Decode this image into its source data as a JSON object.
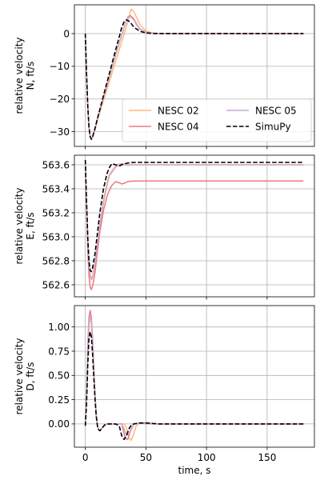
{
  "chart_data": [
    {
      "type": "line",
      "ylabel": [
        "relative velocity",
        "N, ft/s"
      ],
      "xlim": [
        -9,
        189
      ],
      "ylim": [
        -34.5,
        8.8
      ],
      "xticks": [
        0,
        50,
        100,
        150
      ],
      "yticks": [
        0,
        -10,
        -20,
        -30
      ],
      "ytick_labels": [
        "0",
        "−10",
        "−20",
        "−30"
      ],
      "grid": true,
      "legend": {
        "placement": "lower-right",
        "columns": 2,
        "entries": [
          "NESC 02",
          "NESC 04",
          "NESC 05",
          "SimuPy"
        ]
      },
      "series": [
        {
          "name": "NESC 02",
          "color": "#fdb97d",
          "style": "solid",
          "x": [
            0,
            1,
            2,
            3,
            4,
            5,
            6,
            8,
            10,
            15,
            20,
            25,
            30,
            33,
            35,
            37,
            38,
            40,
            42,
            45,
            50,
            55,
            60,
            80,
            100,
            140,
            180
          ],
          "y": [
            0,
            -12,
            -22,
            -28.5,
            -31.5,
            -32.5,
            -31.8,
            -29.5,
            -26.5,
            -20.5,
            -14.5,
            -8.5,
            -2.5,
            1,
            3.5,
            6.5,
            7.5,
            6.7,
            5.2,
            2.8,
            0.8,
            0.2,
            0.05,
            0,
            0,
            0,
            0
          ]
        },
        {
          "name": "NESC 04",
          "color": "#ec7a7f",
          "style": "solid",
          "x": [
            0,
            1,
            2,
            3,
            4,
            5,
            6,
            8,
            10,
            15,
            20,
            25,
            30,
            33,
            35,
            37,
            40,
            43,
            45,
            50,
            55,
            60,
            80,
            100,
            140,
            180
          ],
          "y": [
            0,
            -12,
            -22,
            -28.5,
            -31.5,
            -32.3,
            -31.5,
            -29,
            -26,
            -19.5,
            -13,
            -6.5,
            -0.5,
            3,
            5,
            5.5,
            4.5,
            2.5,
            1.5,
            0.4,
            0.1,
            0,
            0,
            0,
            0,
            0
          ]
        },
        {
          "name": "NESC 05",
          "color": "#c9a8cf",
          "style": "solid",
          "x": [
            0,
            1,
            2,
            3,
            4,
            5,
            6,
            8,
            10,
            15,
            20,
            25,
            30,
            33,
            35,
            37,
            40,
            43,
            45,
            50,
            55,
            60,
            80,
            100,
            140,
            180
          ],
          "y": [
            0,
            -12,
            -22,
            -28.5,
            -31.5,
            -32.3,
            -31.5,
            -29,
            -26,
            -19.5,
            -13,
            -6.5,
            -0.5,
            3,
            4.8,
            5.2,
            4.2,
            2.3,
            1.4,
            0.4,
            0.1,
            0,
            0,
            0,
            0,
            0
          ]
        },
        {
          "name": "SimuPy",
          "color": "#000000",
          "style": "dashed",
          "x": [
            0,
            1,
            2,
            3,
            4,
            5,
            6,
            8,
            10,
            15,
            20,
            25,
            28,
            30,
            32,
            34,
            36,
            38,
            40,
            45,
            50,
            55,
            60,
            80,
            100,
            140,
            180
          ],
          "y": [
            0,
            -12,
            -22,
            -28.5,
            -31.5,
            -32.3,
            -31.5,
            -29,
            -26,
            -19,
            -12,
            -5,
            -1,
            1.8,
            3.6,
            4.2,
            3.8,
            3,
            2,
            0.7,
            0.2,
            0.05,
            0,
            0,
            0,
            0,
            0
          ]
        }
      ]
    },
    {
      "type": "line",
      "ylabel": [
        "relative velocity",
        "E, ft/s"
      ],
      "xlim": [
        -9,
        189
      ],
      "ylim": [
        562.5,
        563.68
      ],
      "xticks": [
        0,
        50,
        100,
        150
      ],
      "yticks": [
        563.6,
        563.4,
        563.2,
        563.0,
        562.8,
        562.6
      ],
      "ytick_labels": [
        "563.6",
        "563.4",
        "563.2",
        "563.0",
        "562.8",
        "562.6"
      ],
      "grid": true,
      "series": [
        {
          "name": "NESC 02",
          "color": "#fdb97d",
          "style": "solid",
          "x": [
            0,
            1,
            2,
            3,
            4,
            5,
            6,
            8,
            10,
            12,
            15,
            18,
            20,
            25,
            28,
            30,
            33,
            35,
            40,
            50,
            60,
            100,
            140,
            180
          ],
          "y": [
            563.62,
            563.3,
            563.0,
            562.78,
            562.67,
            562.64,
            562.66,
            562.76,
            562.92,
            563.08,
            563.28,
            563.43,
            563.51,
            563.58,
            563.6,
            563.605,
            563.6,
            563.595,
            563.6,
            563.6,
            563.6,
            563.6,
            563.6,
            563.6
          ]
        },
        {
          "name": "NESC 04",
          "color": "#ec7a7f",
          "style": "solid",
          "x": [
            0,
            1,
            2,
            3,
            4,
            5,
            6,
            8,
            10,
            12,
            15,
            18,
            20,
            22,
            25,
            28,
            30,
            33,
            35,
            40,
            50,
            60,
            100,
            140,
            180
          ],
          "y": [
            563.62,
            563.25,
            562.9,
            562.68,
            562.58,
            562.56,
            562.59,
            562.7,
            562.88,
            563.04,
            563.22,
            563.34,
            563.39,
            563.43,
            563.46,
            563.45,
            563.44,
            563.45,
            563.46,
            563.465,
            563.465,
            563.465,
            563.465,
            563.465,
            563.465
          ]
        },
        {
          "name": "NESC 05",
          "color": "#c9a8cf",
          "style": "solid",
          "x": [
            0,
            1,
            2,
            3,
            4,
            5,
            6,
            8,
            10,
            12,
            15,
            18,
            20,
            25,
            28,
            30,
            33,
            35,
            40,
            50,
            60,
            100,
            140,
            180
          ],
          "y": [
            563.62,
            563.3,
            563.0,
            562.78,
            562.68,
            562.65,
            562.67,
            562.78,
            562.94,
            563.1,
            563.3,
            563.45,
            563.52,
            563.59,
            563.605,
            563.61,
            563.605,
            563.6,
            563.6,
            563.6,
            563.6,
            563.6,
            563.6,
            563.6
          ]
        },
        {
          "name": "SimuPy",
          "color": "#000000",
          "style": "dashed",
          "x": [
            0,
            1,
            2,
            3,
            4,
            5,
            6,
            8,
            10,
            12,
            15,
            18,
            20,
            22,
            25,
            28,
            30,
            33,
            35,
            40,
            50,
            60,
            100,
            140,
            180
          ],
          "y": [
            563.64,
            563.3,
            563.0,
            562.8,
            562.72,
            562.71,
            562.74,
            562.86,
            563.03,
            563.2,
            563.4,
            563.53,
            563.58,
            563.61,
            563.6,
            563.59,
            563.6,
            563.61,
            563.615,
            563.62,
            563.62,
            563.62,
            563.62,
            563.62,
            563.62
          ]
        }
      ]
    },
    {
      "type": "line",
      "xlabel": "time, s",
      "ylabel": [
        "relative velocity",
        "D, ft/s"
      ],
      "xlim": [
        -9,
        189
      ],
      "ylim": [
        -0.24,
        1.22
      ],
      "xticks": [
        0,
        50,
        100,
        150
      ],
      "xtick_labels": [
        "0",
        "50",
        "100",
        "150"
      ],
      "yticks": [
        1.0,
        0.75,
        0.5,
        0.25,
        0.0
      ],
      "ytick_labels": [
        "1.00",
        "0.75",
        "0.50",
        "0.25",
        "0.00"
      ],
      "grid": true,
      "series": [
        {
          "name": "NESC 02",
          "color": "#fdb97d",
          "style": "solid",
          "x": [
            0,
            1,
            2,
            3,
            4,
            5,
            6,
            7,
            8,
            9,
            10,
            11,
            12,
            14,
            16,
            18,
            20,
            25,
            30,
            32,
            34,
            36,
            38,
            40,
            42,
            45,
            50,
            60,
            100,
            140,
            180
          ],
          "y": [
            0,
            0.25,
            0.7,
            1.0,
            1.1,
            1.05,
            0.85,
            0.55,
            0.3,
            0.1,
            -0.02,
            -0.06,
            -0.07,
            -0.04,
            -0.01,
            0,
            0,
            0,
            0,
            0,
            -0.04,
            -0.14,
            -0.17,
            -0.1,
            -0.02,
            0.01,
            0.01,
            0,
            0,
            0,
            0
          ]
        },
        {
          "name": "NESC 04",
          "color": "#ec7a7f",
          "style": "solid",
          "x": [
            0,
            1,
            2,
            3,
            4,
            5,
            6,
            7,
            8,
            9,
            10,
            11,
            12,
            14,
            16,
            18,
            20,
            25,
            30,
            31,
            33,
            35,
            37,
            40,
            45,
            50,
            60,
            100,
            140,
            180
          ],
          "y": [
            0,
            0.3,
            0.8,
            1.1,
            1.17,
            1.1,
            0.88,
            0.58,
            0.3,
            0.1,
            -0.02,
            -0.06,
            -0.07,
            -0.04,
            -0.01,
            0,
            0,
            0,
            0,
            -0.05,
            -0.15,
            -0.16,
            -0.08,
            0,
            0.01,
            0.01,
            0,
            0,
            0,
            0
          ]
        },
        {
          "name": "NESC 05",
          "color": "#c9a8cf",
          "style": "solid",
          "x": [
            0,
            1,
            2,
            3,
            4,
            5,
            6,
            7,
            8,
            9,
            10,
            11,
            12,
            14,
            16,
            18,
            20,
            25,
            30,
            32,
            34,
            36,
            38,
            40,
            45,
            50,
            60,
            100,
            140,
            180
          ],
          "y": [
            0,
            0.28,
            0.75,
            1.05,
            1.12,
            1.06,
            0.86,
            0.56,
            0.3,
            0.1,
            -0.02,
            -0.06,
            -0.07,
            -0.04,
            -0.01,
            0,
            0,
            0,
            0,
            -0.05,
            -0.12,
            -0.1,
            -0.04,
            0,
            0.01,
            0,
            0,
            0,
            0,
            0
          ]
        },
        {
          "name": "SimuPy",
          "color": "#000000",
          "style": "dashed",
          "x": [
            0,
            1,
            2,
            3,
            4,
            5,
            6,
            7,
            8,
            9,
            10,
            11,
            12,
            14,
            16,
            18,
            20,
            25,
            28,
            30,
            32,
            34,
            36,
            38,
            40,
            45,
            50,
            60,
            100,
            140,
            180
          ],
          "y": [
            -0.02,
            0.2,
            0.6,
            0.88,
            0.95,
            0.9,
            0.72,
            0.48,
            0.26,
            0.08,
            -0.02,
            -0.06,
            -0.07,
            -0.04,
            -0.01,
            0,
            0,
            0,
            -0.02,
            -0.12,
            -0.16,
            -0.12,
            -0.05,
            -0.01,
            0,
            0.01,
            0.01,
            0,
            0,
            0,
            0
          ]
        }
      ]
    }
  ]
}
